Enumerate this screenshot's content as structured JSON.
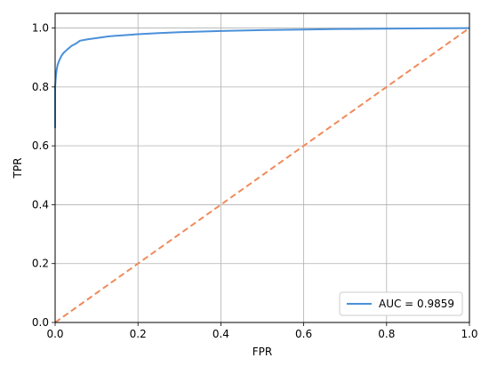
{
  "chart_data": {
    "type": "line",
    "title": "",
    "xlabel": "FPR",
    "ylabel": "TPR",
    "xlim": [
      0,
      1
    ],
    "ylim": [
      0,
      1.05
    ],
    "xticks": [
      "0.0",
      "0.2",
      "0.4",
      "0.6",
      "0.8",
      "1.0"
    ],
    "yticks": [
      "0.0",
      "0.2",
      "0.4",
      "0.6",
      "0.8",
      "1.0"
    ],
    "grid": true,
    "legend_position": "lower-right",
    "series": [
      {
        "name": "AUC = 0.9859",
        "color": "#4a90d9",
        "style": "solid",
        "x": [
          0.0,
          0.0,
          0.002,
          0.004,
          0.006,
          0.01,
          0.015,
          0.02,
          0.03,
          0.04,
          0.05,
          0.06,
          0.08,
          0.1,
          0.13,
          0.16,
          0.2,
          0.25,
          0.3,
          0.4,
          0.5,
          0.6,
          0.7,
          0.8,
          0.9,
          1.0
        ],
        "y": [
          0.66,
          0.8,
          0.84,
          0.86,
          0.875,
          0.89,
          0.905,
          0.915,
          0.928,
          0.94,
          0.947,
          0.957,
          0.962,
          0.966,
          0.972,
          0.975,
          0.979,
          0.983,
          0.986,
          0.99,
          0.993,
          0.995,
          0.997,
          0.998,
          0.999,
          1.0
        ]
      },
      {
        "name": "",
        "color": "#f08a5a",
        "style": "dashed",
        "x": [
          0,
          1
        ],
        "y": [
          0,
          1
        ]
      }
    ]
  }
}
